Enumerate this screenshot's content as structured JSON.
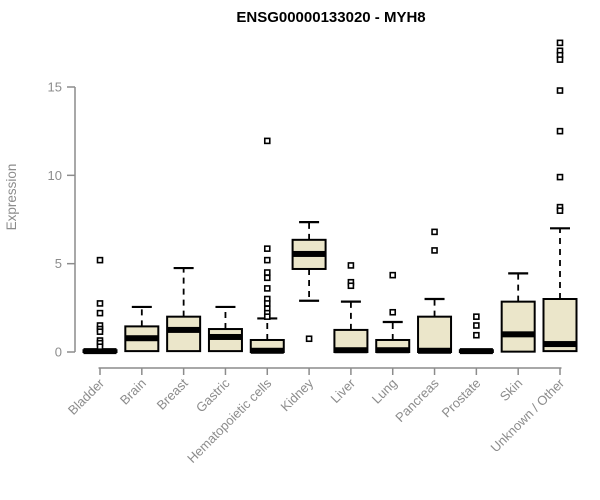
{
  "title": "ENSG00000133020 - MYH8",
  "chart_data": {
    "type": "boxplot",
    "title": "ENSG00000133020 - MYH8",
    "xlabel": "",
    "ylabel": "Expression",
    "ylim": [
      0,
      17.7
    ],
    "yticks": [
      0,
      5,
      10,
      15
    ],
    "grid": false,
    "legend": false,
    "categories": [
      "Bladder",
      "Brain",
      "Breast",
      "Gastric",
      "Hematopoietic cells",
      "Kidney",
      "Liver",
      "Lung",
      "Pancreas",
      "Prostate",
      "Skin",
      "Unknown / Other"
    ],
    "series": [
      {
        "category": "Bladder",
        "q1": 0,
        "median": 0.05,
        "q3": 0.1,
        "whisker_low": null,
        "whisker_high": null,
        "outliers": [
          5.2,
          2.75,
          2.2,
          1.5,
          1.3,
          1.15,
          0.65,
          0.5,
          0.3
        ]
      },
      {
        "category": "Brain",
        "q1": 0.05,
        "median": 0.78,
        "q3": 1.45,
        "whisker_low": null,
        "whisker_high": 2.55,
        "outliers": []
      },
      {
        "category": "Breast",
        "q1": 0.05,
        "median": 1.25,
        "q3": 2.0,
        "whisker_low": null,
        "whisker_high": 4.75,
        "outliers": []
      },
      {
        "category": "Gastric",
        "q1": 0.05,
        "median": 0.85,
        "q3": 1.3,
        "whisker_low": null,
        "whisker_high": 2.55,
        "outliers": []
      },
      {
        "category": "Hematopoietic cells",
        "q1": 0,
        "median": 0.07,
        "q3": 0.68,
        "whisker_low": null,
        "whisker_high": 1.9,
        "outliers": [
          11.95,
          5.85,
          5.2,
          4.5,
          4.2,
          3.6,
          3.0,
          2.75,
          2.45,
          2.2,
          2.0
        ]
      },
      {
        "category": "Kidney",
        "q1": 4.7,
        "median": 5.55,
        "q3": 6.35,
        "whisker_low": 2.9,
        "whisker_high": 7.35,
        "outliers": [
          0.75
        ]
      },
      {
        "category": "Liver",
        "q1": 0,
        "median": 0.1,
        "q3": 1.25,
        "whisker_low": null,
        "whisker_high": 2.85,
        "outliers": [
          4.9,
          3.95,
          3.75
        ]
      },
      {
        "category": "Lung",
        "q1": 0,
        "median": 0.1,
        "q3": 0.68,
        "whisker_low": null,
        "whisker_high": 1.7,
        "outliers": [
          4.35,
          2.25
        ]
      },
      {
        "category": "Pancreas",
        "q1": 0,
        "median": 0.07,
        "q3": 2.0,
        "whisker_low": null,
        "whisker_high": 3.0,
        "outliers": [
          6.8,
          5.75
        ]
      },
      {
        "category": "Prostate",
        "q1": 0,
        "median": 0.05,
        "q3": 0.1,
        "whisker_low": null,
        "whisker_high": null,
        "outliers": [
          2.0,
          1.5,
          0.95
        ]
      },
      {
        "category": "Skin",
        "q1": 0.02,
        "median": 1.0,
        "q3": 2.85,
        "whisker_low": null,
        "whisker_high": 4.45,
        "outliers": []
      },
      {
        "category": "Unknown / Other",
        "q1": 0.05,
        "median": 0.45,
        "q3": 3.0,
        "whisker_low": null,
        "whisker_high": 7.0,
        "outliers": [
          17.5,
          17.05,
          16.8,
          16.55,
          14.8,
          12.5,
          9.9,
          8.2,
          8.0
        ]
      }
    ],
    "colors": {
      "box_fill": "#EBE6CA",
      "box_stroke": "#000000",
      "median": "#000000",
      "whisker": "#000000",
      "outlier_stroke": "#000000",
      "outlier_fill": "#FFFFFF",
      "axis": "#8C8C8C",
      "background": "#FFFFFF"
    }
  }
}
